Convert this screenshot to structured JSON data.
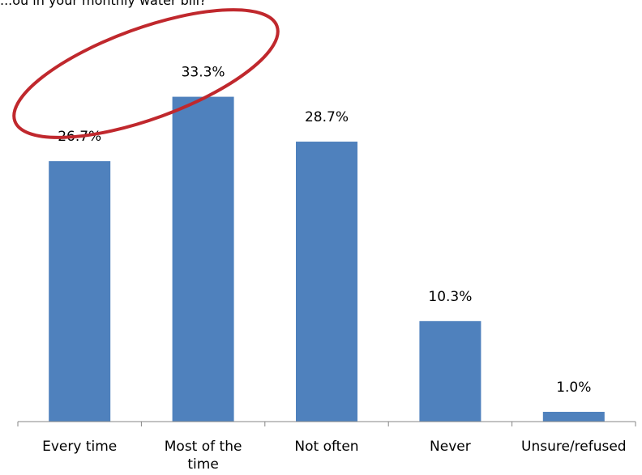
{
  "chart_data": {
    "type": "bar",
    "title": "...ou in your monthly water bill?",
    "xlabel": "",
    "ylabel": "",
    "categories": [
      "Every time",
      "Most of the time",
      "Not often",
      "Never",
      "Unsure/refused"
    ],
    "category_lines": [
      [
        "Every time"
      ],
      [
        "Most of the",
        "time"
      ],
      [
        "Not often"
      ],
      [
        "Never"
      ],
      [
        "Unsure/refused"
      ]
    ],
    "values": [
      26.7,
      33.3,
      28.7,
      10.3,
      1.0
    ],
    "data_labels": [
      "26.7%",
      "33.3%",
      "28.7%",
      "10.3%",
      "1.0%"
    ],
    "ylim": [
      0,
      36.5
    ],
    "grid": false,
    "legend": "none",
    "bar_color": "#4F81BD",
    "highlight": {
      "shape": "ellipse",
      "color": "#C0282D",
      "covers": [
        "Every time",
        "Most of the time"
      ]
    }
  }
}
